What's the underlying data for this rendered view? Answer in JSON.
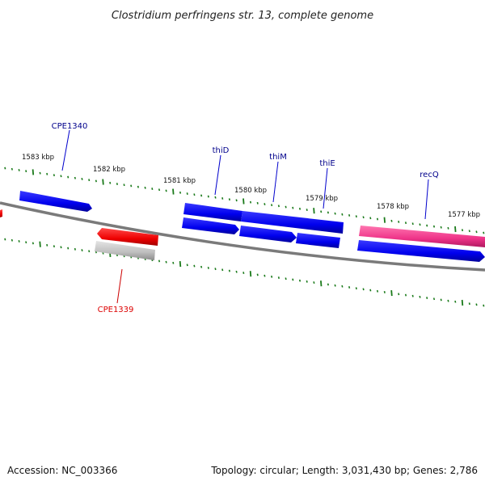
{
  "title": "Clostridium perfringens str. 13, complete genome",
  "footer": {
    "accession": "Accession: NC_003366",
    "summary": "Topology: circular; Length: 3,031,430 bp; Genes: 2,786"
  },
  "colors": {
    "backbone": "#7f7f7f",
    "tick": "#1a7a1a",
    "forward_gene": "#0000ee",
    "reverse_gene": "#0000ee",
    "highlight_gene": "#ee0000",
    "pseudo_gene": "#bdbdbd",
    "rna_gene": "#ee3388",
    "label_default": "#00008b",
    "label_highlight": "#dd0000"
  },
  "kbp_labels": [
    {
      "text": "1583 kbp"
    },
    {
      "text": "1582 kbp"
    },
    {
      "text": "1581 kbp"
    },
    {
      "text": "1580 kbp"
    },
    {
      "text": "1579 kbp"
    },
    {
      "text": "1578 kbp"
    },
    {
      "text": "1577 kbp"
    }
  ],
  "gene_labels": [
    {
      "text": "CPE1340",
      "kind": "default"
    },
    {
      "text": "thiD",
      "kind": "default"
    },
    {
      "text": "thiM",
      "kind": "default"
    },
    {
      "text": "thiE",
      "kind": "default"
    },
    {
      "text": "recQ",
      "kind": "default"
    },
    {
      "text": "CPE1339",
      "kind": "highlight"
    }
  ]
}
